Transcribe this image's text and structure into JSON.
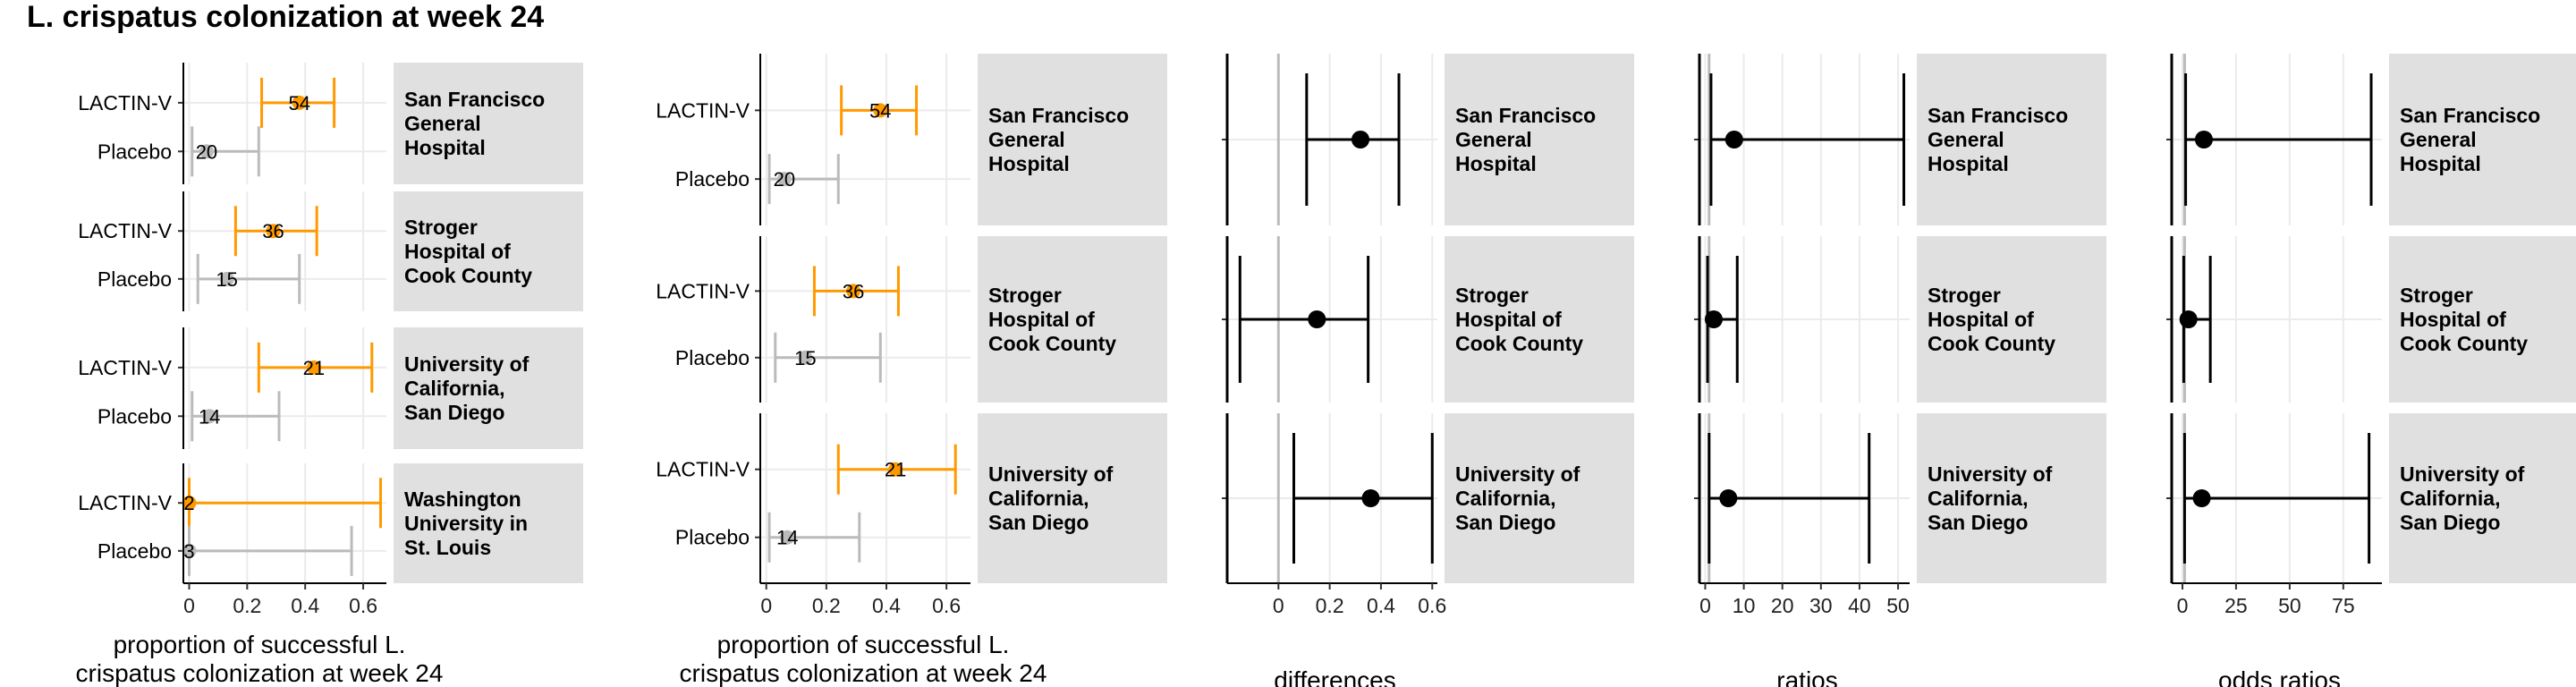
{
  "title": "L. crispatus colonization at week 24",
  "colors": {
    "treatment": "#FF9900",
    "placebo": "#BBBBBB",
    "strip": "#E0E0E0",
    "grid": "#EBEBEB",
    "point": "#000000"
  },
  "chart_data": [
    {
      "type": "scatter",
      "subtype": "point-range by arm, faceted",
      "xlabel": "proportion of successful L. crispatus colonization at week 24",
      "xticks": [
        0,
        0.2,
        0.4,
        0.6
      ],
      "xlim": [
        -0.02,
        0.68
      ],
      "arms": [
        "LACTIN-V",
        "Placebo"
      ],
      "facets": [
        {
          "label": "San Francisco General Hospital",
          "rows": [
            {
              "arm": "LACTIN-V",
              "n": "54",
              "est": 0.38,
              "lo": 0.25,
              "hi": 0.5
            },
            {
              "arm": "Placebo",
              "n": "20",
              "est": 0.06,
              "lo": 0.01,
              "hi": 0.24
            }
          ]
        },
        {
          "label": "Stroger Hospital of Cook County",
          "rows": [
            {
              "arm": "LACTIN-V",
              "n": "36",
              "est": 0.29,
              "lo": 0.16,
              "hi": 0.44
            },
            {
              "arm": "Placebo",
              "n": "15",
              "est": 0.13,
              "lo": 0.03,
              "hi": 0.38
            }
          ]
        },
        {
          "label": "University of California, San Diego",
          "rows": [
            {
              "arm": "LACTIN-V",
              "n": "21",
              "est": 0.43,
              "lo": 0.24,
              "hi": 0.63
            },
            {
              "arm": "Placebo",
              "n": "14",
              "est": 0.07,
              "lo": 0.01,
              "hi": 0.31
            }
          ]
        },
        {
          "label": "Washington University in St. Louis",
          "rows": [
            {
              "arm": "LACTIN-V",
              "n": "2",
              "est": 0.0,
              "lo": 0.0,
              "hi": 0.66
            },
            {
              "arm": "Placebo",
              "n": "3",
              "est": 0.0,
              "lo": 0.0,
              "hi": 0.56
            }
          ]
        }
      ]
    },
    {
      "type": "scatter",
      "subtype": "point-range by arm, faceted",
      "xlabel": "proportion of successful L. crispatus colonization at week 24",
      "xticks": [
        0,
        0.2,
        0.4,
        0.6
      ],
      "xlim": [
        -0.02,
        0.68
      ],
      "arms": [
        "LACTIN-V",
        "Placebo"
      ],
      "facets": [
        {
          "label": "San Francisco General Hospital",
          "rows": [
            {
              "arm": "LACTIN-V",
              "n": "54",
              "est": 0.38,
              "lo": 0.25,
              "hi": 0.5
            },
            {
              "arm": "Placebo",
              "n": "20",
              "est": 0.06,
              "lo": 0.01,
              "hi": 0.24
            }
          ]
        },
        {
          "label": "Stroger Hospital of Cook County",
          "rows": [
            {
              "arm": "LACTIN-V",
              "n": "36",
              "est": 0.29,
              "lo": 0.16,
              "hi": 0.44
            },
            {
              "arm": "Placebo",
              "n": "15",
              "est": 0.13,
              "lo": 0.03,
              "hi": 0.38
            }
          ]
        },
        {
          "label": "University of California, San Diego",
          "rows": [
            {
              "arm": "LACTIN-V",
              "n": "21",
              "est": 0.43,
              "lo": 0.24,
              "hi": 0.63
            },
            {
              "arm": "Placebo",
              "n": "14",
              "est": 0.07,
              "lo": 0.01,
              "hi": 0.31
            }
          ]
        }
      ]
    },
    {
      "type": "scatter",
      "subtype": "estimate with CI, faceted",
      "xlabel": "differences",
      "xticks": [
        0,
        0.2,
        0.4,
        0.6
      ],
      "xlim": [
        -0.2,
        0.62
      ],
      "reference": 0,
      "facets": [
        {
          "label": "San Francisco General Hospital",
          "est": 0.32,
          "lo": 0.11,
          "hi": 0.47
        },
        {
          "label": "Stroger Hospital of Cook County",
          "est": 0.15,
          "lo": -0.15,
          "hi": 0.35
        },
        {
          "label": "University of California, San Diego",
          "est": 0.36,
          "lo": 0.06,
          "hi": 0.6
        }
      ]
    },
    {
      "type": "scatter",
      "subtype": "estimate with CI, faceted",
      "xlabel": "ratios",
      "xticks": [
        0,
        10,
        20,
        30,
        40,
        50
      ],
      "xlim": [
        -1.5,
        53
      ],
      "reference": 1,
      "facets": [
        {
          "label": "San Francisco General Hospital",
          "est": 7.5,
          "lo": 1.5,
          "hi": 51.5
        },
        {
          "label": "Stroger Hospital of Cook County",
          "est": 2.2,
          "lo": 0.6,
          "hi": 8.3
        },
        {
          "label": "University of California, San Diego",
          "est": 6.0,
          "lo": 1.0,
          "hi": 42.5
        }
      ]
    },
    {
      "type": "scatter",
      "subtype": "estimate with CI, faceted",
      "xlabel": "odds ratios",
      "xticks": [
        0,
        25,
        50,
        75
      ],
      "xlim": [
        -5,
        93
      ],
      "reference": 1,
      "facets": [
        {
          "label": "San Francisco General Hospital",
          "est": 10.0,
          "lo": 1.5,
          "hi": 88.0
        },
        {
          "label": "Stroger Hospital of Cook County",
          "est": 2.8,
          "lo": 0.6,
          "hi": 13.0
        },
        {
          "label": "University of California, San Diego",
          "est": 9.0,
          "lo": 1.0,
          "hi": 87.0
        }
      ]
    }
  ]
}
